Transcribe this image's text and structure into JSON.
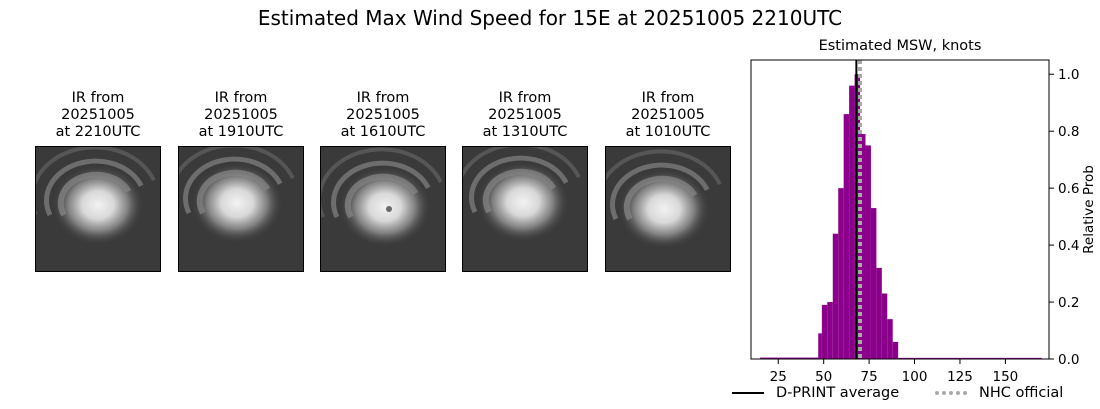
{
  "suptitle": "Estimated Max Wind Speed for 15E at 20251005 2210UTC",
  "ir_panels": [
    {
      "title": "IR from\n20251005\nat 2210UTC"
    },
    {
      "title": "IR from\n20251005\nat 1910UTC"
    },
    {
      "title": "IR from\n20251005\nat 1610UTC"
    },
    {
      "title": "IR from\n20251005\nat 1310UTC"
    },
    {
      "title": "IR from\n20251005\nat 1010UTC"
    }
  ],
  "chart_data": {
    "type": "bar",
    "title": "Estimated MSW, knots",
    "xlabel": "",
    "ylabel": "Relative Prob",
    "xlim": [
      10,
      174
    ],
    "ylim": [
      0,
      1.05
    ],
    "xticks": [
      25,
      50,
      75,
      100,
      125,
      150
    ],
    "yticks": [
      0.0,
      0.2,
      0.4,
      0.6,
      0.8,
      1.0
    ],
    "bar_color": "#8b008b",
    "bins": [
      {
        "x0": 15,
        "x1": 47,
        "value": 0.005
      },
      {
        "x0": 47,
        "x1": 49,
        "value": 0.09
      },
      {
        "x0": 49,
        "x1": 52,
        "value": 0.19
      },
      {
        "x0": 52,
        "x1": 55,
        "value": 0.2
      },
      {
        "x0": 55,
        "x1": 58,
        "value": 0.44
      },
      {
        "x0": 58,
        "x1": 61,
        "value": 0.6
      },
      {
        "x0": 61,
        "x1": 64,
        "value": 0.86
      },
      {
        "x0": 64,
        "x1": 67,
        "value": 0.96
      },
      {
        "x0": 67,
        "x1": 70,
        "value": 1.0
      },
      {
        "x0": 70,
        "x1": 73,
        "value": 0.79
      },
      {
        "x0": 73,
        "x1": 76,
        "value": 0.75
      },
      {
        "x0": 76,
        "x1": 79,
        "value": 0.53
      },
      {
        "x0": 79,
        "x1": 82,
        "value": 0.32
      },
      {
        "x0": 82,
        "x1": 85,
        "value": 0.23
      },
      {
        "x0": 85,
        "x1": 88,
        "value": 0.14
      },
      {
        "x0": 88,
        "x1": 91,
        "value": 0.06
      },
      {
        "x0": 91,
        "x1": 170,
        "value": 0.004
      }
    ],
    "dprint_average": 68,
    "nhc_official": 70,
    "legend": {
      "dprint_label": "D-PRINT average",
      "nhc_label": "NHC official",
      "placement": "bottom"
    },
    "dprint_color": "#000000",
    "nhc_color": "#a9a9a9"
  }
}
